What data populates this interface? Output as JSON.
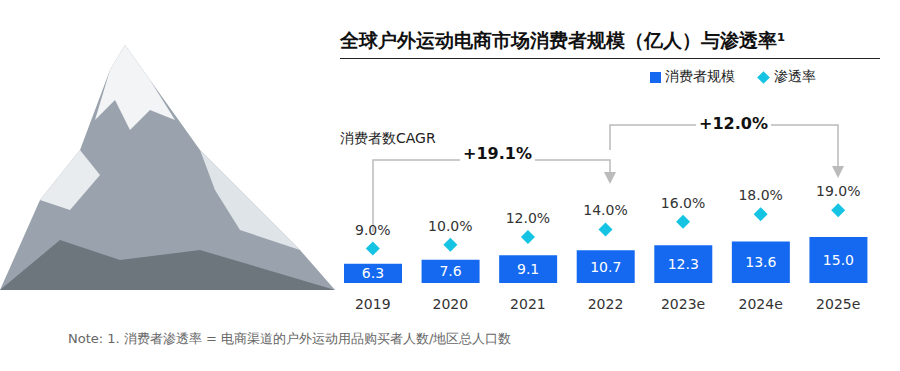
{
  "chart_data": {
    "type": "bar",
    "title": "全球户外运动电商市场消费者规模（亿人）与渗透率¹",
    "categories": [
      "2019",
      "2020",
      "2021",
      "2022",
      "2023e",
      "2024e",
      "2025e"
    ],
    "series": [
      {
        "name": "消费者规模",
        "type": "bar",
        "color": "#1469f0",
        "values": [
          6.3,
          7.6,
          9.1,
          10.7,
          12.3,
          13.6,
          15.0
        ],
        "value_labels": [
          "6.3",
          "7.6",
          "9.1",
          "10.7",
          "12.3",
          "13.6",
          "15.0"
        ]
      },
      {
        "name": "渗透率",
        "type": "scatter",
        "marker": "diamond",
        "axis": "y2",
        "color": "#15c3e3",
        "values": [
          9,
          10,
          12,
          14,
          16,
          18,
          19
        ],
        "value_labels": [
          "9.0%",
          "10.0%",
          "12.0%",
          "14.0%",
          "16.0%",
          "18.0%",
          "19.0%"
        ]
      }
    ],
    "ylim": [
      0,
      50
    ],
    "y2lim": [
      0,
      40
    ],
    "data_labels": true,
    "tick_labels": "x",
    "grid": false,
    "annotations": [
      "消费者数CAGR",
      "+19.1%",
      "+12.0%"
    ],
    "note": "Note: 1. 消费者渗透率 = 电商渠道的户外运动用品购买者人数/地区总人口数"
  }
}
